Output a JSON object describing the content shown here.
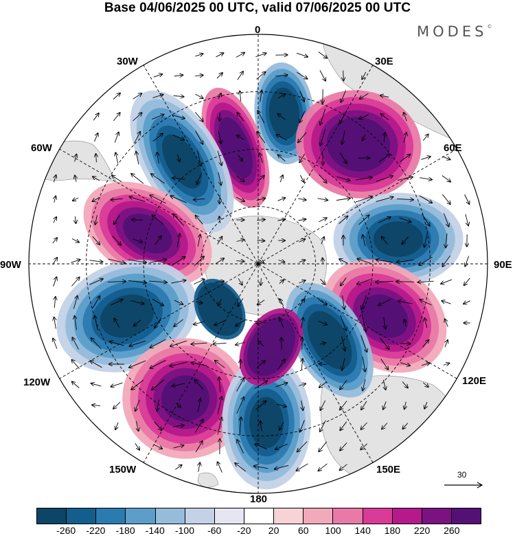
{
  "header": {
    "title": "Base 04/06/2025 00 UTC, valid 07/06/2025 00 UTC",
    "brand": "MODES",
    "brand_mark": "©"
  },
  "map": {
    "projection": "south polar stereographic",
    "field": "shaded anomaly with vector wind arrows",
    "longitude_labels": [
      "0",
      "30E",
      "60E",
      "90E",
      "120E",
      "150E",
      "180",
      "150W",
      "120W",
      "90W",
      "60W",
      "30W"
    ],
    "reference_vector": {
      "value": "30",
      "icon": "right-arrow-icon"
    },
    "pattern": "alternating positive and negative anomaly centers ringing the pole (wavenumber ~6)",
    "background_color": "#e5e5e5",
    "graticule_style": "dashed"
  },
  "colorbar": {
    "colors": [
      "#0d4566",
      "#145e8e",
      "#2b7ab0",
      "#5c9ec9",
      "#96bcdb",
      "#c3d2e7",
      "#e6e6f2",
      "#ffffff",
      "#f7d3d8",
      "#f2a9bb",
      "#e97aa7",
      "#d93c98",
      "#b5198a",
      "#7b1282",
      "#531175"
    ],
    "tick_labels": [
      "-260",
      "-220",
      "-180",
      "-140",
      "-100",
      "-60",
      "-20",
      "20",
      "60",
      "100",
      "140",
      "180",
      "220",
      "260"
    ]
  }
}
